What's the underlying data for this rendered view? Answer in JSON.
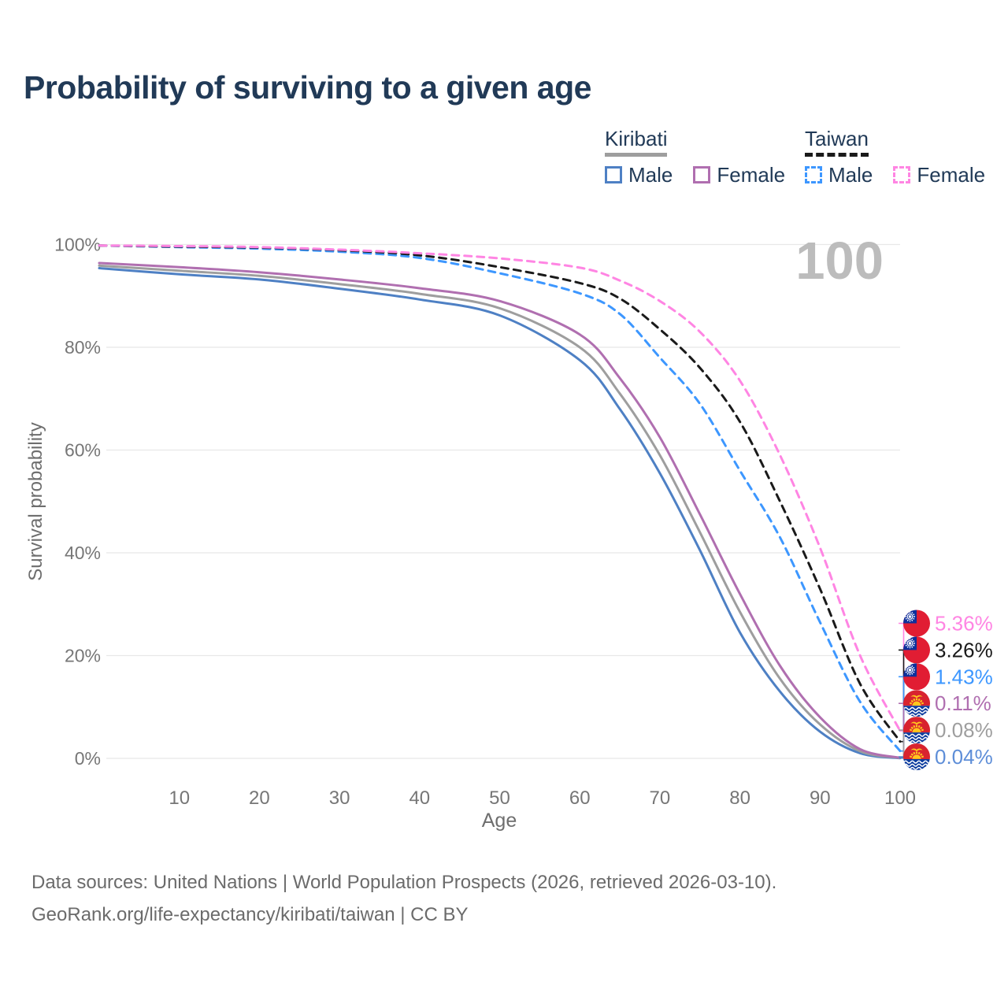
{
  "title": "Probability of surviving to a given age",
  "watermark": "100",
  "legend": {
    "groups": [
      {
        "country": "Kiribati",
        "line_style": "solid",
        "line_color": "#9e9e9e",
        "items": [
          {
            "label": "Male",
            "color": "#4e80c4",
            "dashed": false
          },
          {
            "label": "Female",
            "color": "#b06fb0",
            "dashed": false
          }
        ]
      },
      {
        "country": "Taiwan",
        "line_style": "dashed",
        "line_color": "#1a1a1a",
        "items": [
          {
            "label": "Male",
            "color": "#3d97ff",
            "dashed": true
          },
          {
            "label": "Female",
            "color": "#ff85e3",
            "dashed": true
          }
        ]
      }
    ]
  },
  "chart_data": {
    "type": "line",
    "title": "Probability of surviving to a given age",
    "xlabel": "Age",
    "ylabel": "Survival probability",
    "xlim": [
      0,
      100
    ],
    "ylim": [
      0,
      100
    ],
    "grid": "horizontal",
    "x_ticks": [
      10,
      20,
      30,
      40,
      50,
      60,
      70,
      80,
      90,
      100
    ],
    "y_ticks": [
      0,
      20,
      40,
      60,
      80,
      100
    ],
    "y_tick_suffix": "%",
    "legend_position": "top-right",
    "x": [
      0,
      10,
      20,
      30,
      40,
      50,
      60,
      65,
      70,
      75,
      80,
      85,
      90,
      95,
      100
    ],
    "series": [
      {
        "name": "Kiribati Male",
        "country": "Kiribati",
        "group": "Male",
        "color": "#4e80c4",
        "label_color": "#5e8ed8",
        "dashed": false,
        "end_label": "0.04%",
        "values": [
          95.4,
          94.2,
          93.2,
          91.4,
          89.3,
          86.2,
          77.5,
          68.0,
          55.5,
          40.5,
          24.5,
          13.0,
          5.2,
          1.0,
          0.04
        ]
      },
      {
        "name": "Kiribati",
        "country": "Kiribati",
        "group": "Both sexes",
        "color": "#9e9e9e",
        "label_color": "#9e9e9e",
        "dashed": false,
        "end_label": "0.08%",
        "values": [
          95.9,
          94.9,
          93.9,
          92.3,
          90.4,
          87.6,
          80.0,
          71.0,
          59.0,
          44.0,
          28.5,
          15.5,
          6.6,
          1.4,
          0.08
        ]
      },
      {
        "name": "Kiribati Female",
        "country": "Kiribati",
        "group": "Female",
        "color": "#b06fb0",
        "label_color": "#b06fb0",
        "dashed": false,
        "end_label": "0.11%",
        "values": [
          96.4,
          95.6,
          94.6,
          93.2,
          91.5,
          89.0,
          82.5,
          74.0,
          62.5,
          47.5,
          32.0,
          18.0,
          8.0,
          1.8,
          0.11
        ]
      },
      {
        "name": "Taiwan Male",
        "country": "Taiwan",
        "group": "Male",
        "color": "#3d97ff",
        "label_color": "#3d97ff",
        "dashed": true,
        "end_label": "1.43%",
        "values": [
          99.8,
          99.5,
          99.2,
          98.6,
          97.4,
          94.4,
          90.5,
          86.5,
          78.0,
          69.0,
          56.0,
          43.0,
          26.5,
          11.0,
          1.43
        ]
      },
      {
        "name": "Taiwan",
        "country": "Taiwan",
        "group": "Both sexes",
        "color": "#1a1a1a",
        "label_color": "#1a1a1a",
        "dashed": true,
        "end_label": "3.26%",
        "values": [
          99.8,
          99.6,
          99.4,
          98.9,
          97.9,
          95.6,
          92.5,
          89.5,
          83.5,
          76.0,
          65.5,
          50.0,
          33.0,
          14.5,
          3.26
        ]
      },
      {
        "name": "Taiwan Female",
        "country": "Taiwan",
        "group": "Female",
        "color": "#ff85e3",
        "label_color": "#ff85e3",
        "dashed": true,
        "end_label": "5.36%",
        "values": [
          99.8,
          99.7,
          99.5,
          99.0,
          98.3,
          97.3,
          95.5,
          93.0,
          89.0,
          83.0,
          73.5,
          59.0,
          41.0,
          20.0,
          5.36
        ]
      }
    ]
  },
  "footer": {
    "line1": "Data sources: United Nations | World Population Prospects (2026, retrieved 2026-03-10).",
    "line2": "GeoRank.org/life-expectancy/kiribati/taiwan | CC BY"
  }
}
